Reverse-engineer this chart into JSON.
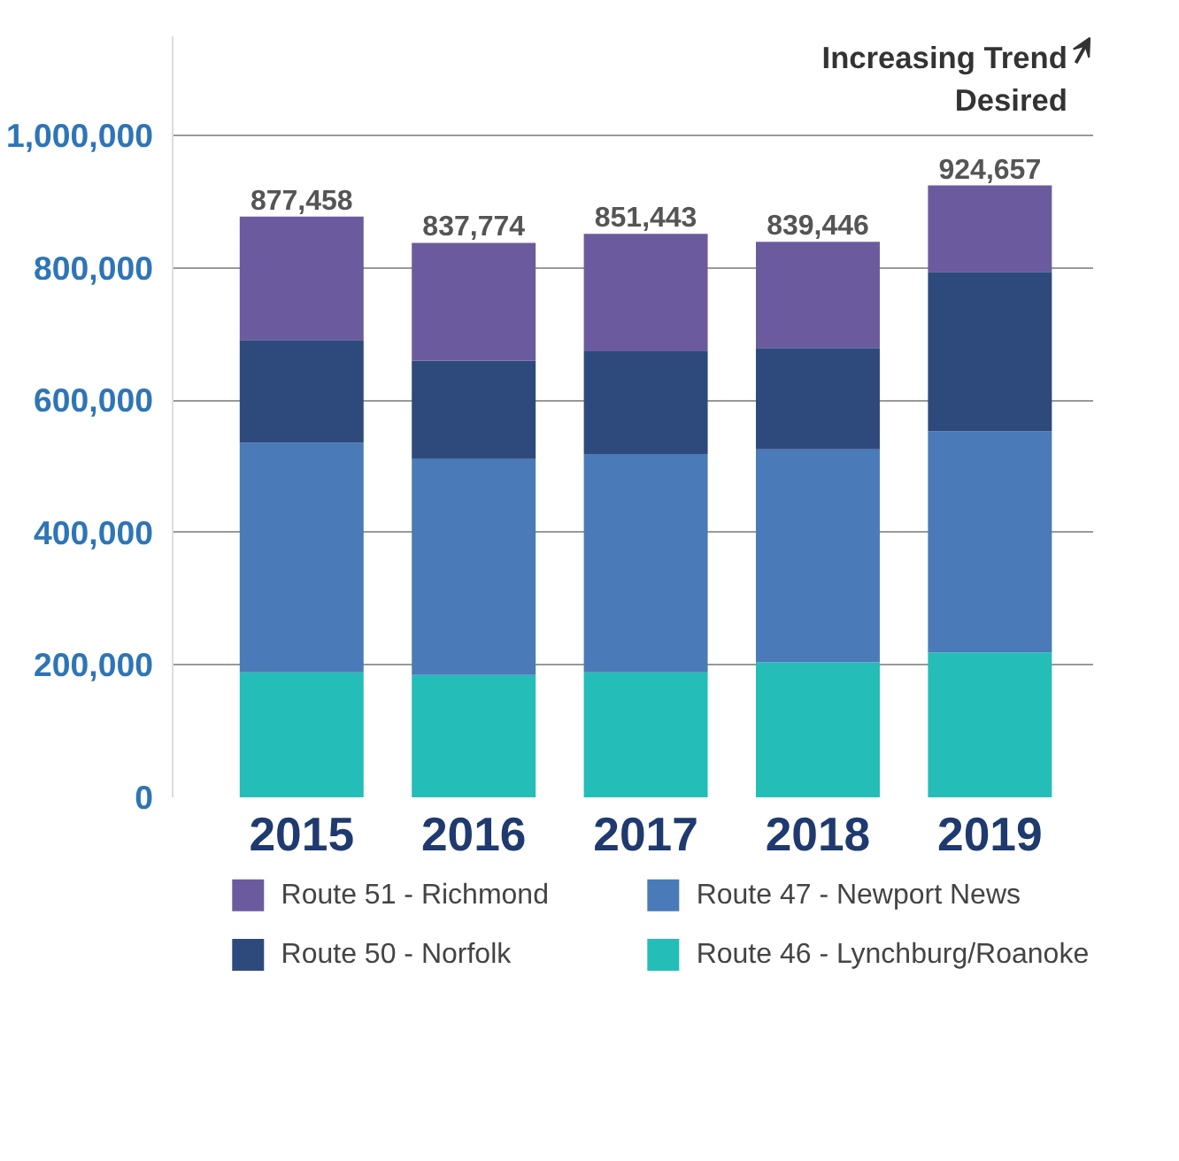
{
  "chart_data": {
    "type": "bar",
    "stacked": true,
    "categories": [
      "2015",
      "2016",
      "2017",
      "2018",
      "2019"
    ],
    "series": [
      {
        "name": "Route 46 - Lynchburg/Roanoke",
        "color": "#25bdb8",
        "values": [
          189000,
          185000,
          189000,
          204000,
          219000
        ]
      },
      {
        "name": "Route 47 - Newport News",
        "color": "#4a7ab8",
        "values": [
          347000,
          326000,
          330000,
          322000,
          334000
        ]
      },
      {
        "name": "Route 50 - Norfolk",
        "color": "#2e4a7d",
        "values": [
          155000,
          149000,
          155000,
          153000,
          241000
        ]
      },
      {
        "name": "Route 51 - Richmond",
        "color": "#6b5b9e",
        "values": [
          186458,
          177774,
          177443,
          160446,
          130657
        ]
      }
    ],
    "totals": [
      "877,458",
      "837,774",
      "851,443",
      "839,446",
      "924,657"
    ],
    "ylim": [
      0,
      1150000
    ],
    "yticks": [
      0,
      {
        "value": 200000,
        "label": "200,000"
      },
      {
        "value": 400000,
        "label": "400,000"
      },
      {
        "value": 600000,
        "label": "600,000"
      },
      {
        "value": 800000,
        "label": "800,000"
      },
      {
        "value": 1000000,
        "label": "1,000,000"
      }
    ],
    "grid": "y",
    "legend": "bottom",
    "annotations": [
      "Increasing Trend Desired"
    ]
  }
}
